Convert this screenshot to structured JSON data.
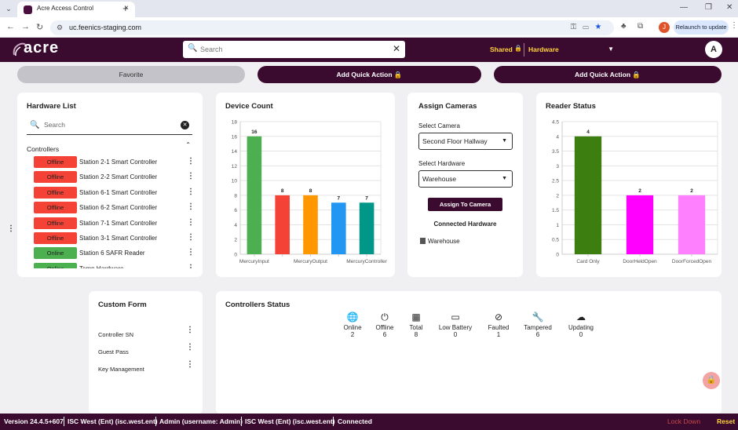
{
  "browser": {
    "tab_title": "Acre Access Control",
    "url": "uc.feenics-staging.com",
    "profile_initial": "J",
    "relaunch_label": "Relaunch to update"
  },
  "header": {
    "logo_text": "acre",
    "search_placeholder": "Search",
    "shared_label": "Shared",
    "hardware_label": "Hardware",
    "user_initial": "A"
  },
  "actions": {
    "favorite_label": "Favorite",
    "quick_action_1": "Add Quick Action",
    "quick_action_2": "Add Quick Action"
  },
  "hardware_list": {
    "title": "Hardware List",
    "search_placeholder": "Search",
    "section_label": "Controllers",
    "items": [
      {
        "status": "Offline",
        "name": "Station 2-1 Smart Controller"
      },
      {
        "status": "Offline",
        "name": "Station 2-2 Smart Controller"
      },
      {
        "status": "Offline",
        "name": "Station 6-1 Smart Controller"
      },
      {
        "status": "Offline",
        "name": "Station 6-2 Smart Controller"
      },
      {
        "status": "Offline",
        "name": "Station 7-1 Smart Controller"
      },
      {
        "status": "Offline",
        "name": "Station 3-1 Smart Controller"
      },
      {
        "status": "Online",
        "name": "Station 6 SAFR Reader"
      },
      {
        "status": "Online",
        "name": "Temp Hardware"
      }
    ]
  },
  "device_count": {
    "title": "Device Count"
  },
  "assign_cameras": {
    "title": "Assign Cameras",
    "camera_label": "Select Camera",
    "camera_value": "Second Floor Hallway",
    "hardware_label": "Select Hardware",
    "hardware_value": "Warehouse",
    "assign_button": "Assign To Camera",
    "connected_label": "Connected Hardware",
    "connected_item": "Warehouse"
  },
  "reader_status": {
    "title": "Reader Status"
  },
  "custom_form": {
    "title": "Custom Form",
    "items": [
      "Controller SN",
      "Guest Pass",
      "Key Management"
    ]
  },
  "controllers_status": {
    "title": "Controllers Status",
    "items": [
      {
        "icon": "globe-icon",
        "label": "Online",
        "count": "2"
      },
      {
        "icon": "power-icon",
        "label": "Offline",
        "count": "6"
      },
      {
        "icon": "chip-icon",
        "label": "Total",
        "count": "8"
      },
      {
        "icon": "battery-icon",
        "label": "Low Battery",
        "count": "0"
      },
      {
        "icon": "blocked-icon",
        "label": "Faulted",
        "count": "1"
      },
      {
        "icon": "wrench-icon",
        "label": "Tampered",
        "count": "6"
      },
      {
        "icon": "cloud-upload-icon",
        "label": "Updating",
        "count": "0"
      }
    ]
  },
  "footer": {
    "version": "Version 24.4.5+607",
    "instance_1": "ISC West (Ent) (isc.west.ent)",
    "admin": "Admin (username: Admin)",
    "instance_2": "ISC West (Ent) (isc.west.ent)",
    "connection": "Connected",
    "lockdown_label": "Lock Down",
    "reset_label": "Reset"
  },
  "colors": {
    "brand": "#3b0a2f",
    "accent_yellow": "#ffd43b",
    "offline": "#f44336",
    "online": "#4caf50"
  },
  "chart_data": [
    {
      "type": "bar",
      "title": "Device Count",
      "categories": [
        "MercuryInput",
        "",
        "MercuryOutput",
        "",
        "MercuryController"
      ],
      "values": [
        16,
        8,
        8,
        7,
        7
      ],
      "colors": [
        "#4caf50",
        "#f44336",
        "#ff9800",
        "#2196f3",
        "#009688"
      ],
      "ylim": [
        0,
        18
      ],
      "yticks": [
        0,
        2,
        4,
        6,
        8,
        10,
        12,
        14,
        16,
        18
      ],
      "grid": true
    },
    {
      "type": "bar",
      "title": "Reader Status",
      "categories": [
        "Card Only",
        "DoorHeldOpen",
        "DoorForcedOpen"
      ],
      "values": [
        4,
        2,
        2
      ],
      "colors": [
        "#3c7f10",
        "#ff00ff",
        "#ff80ff"
      ],
      "ylim": [
        0,
        4.5
      ],
      "yticks": [
        0,
        0.5,
        1,
        1.5,
        2,
        2.5,
        3,
        3.5,
        4,
        4.5
      ],
      "grid": true
    }
  ]
}
